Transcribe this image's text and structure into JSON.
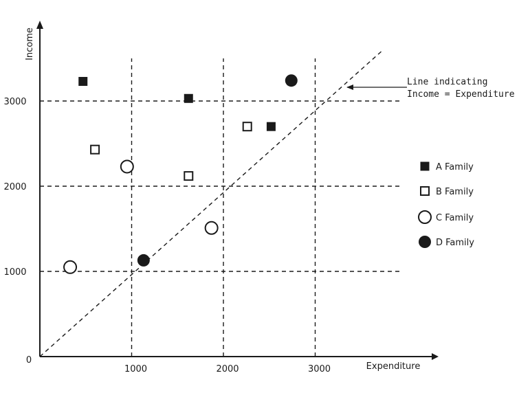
{
  "chart_data": {
    "type": "scatter",
    "title": "",
    "xlabel": "Expenditure",
    "ylabel": "Income",
    "origin_label": "0",
    "x_ticks": [
      "1000",
      "2000",
      "3000"
    ],
    "y_ticks": [
      "1000",
      "2000",
      "3000"
    ],
    "xlim": [
      0,
      3500
    ],
    "ylim": [
      0,
      3850
    ],
    "grid": true,
    "legend_position": "right",
    "reference_line": {
      "label_line1": "Line indicating",
      "label_line2": "Income = Expenditure"
    },
    "series": [
      {
        "name": "A Family",
        "marker": "filled-square",
        "points": [
          {
            "x": 470,
            "y": 3230
          },
          {
            "x": 1620,
            "y": 3030
          },
          {
            "x": 2520,
            "y": 2700
          }
        ]
      },
      {
        "name": "B Family",
        "marker": "open-square",
        "points": [
          {
            "x": 600,
            "y": 2430
          },
          {
            "x": 1620,
            "y": 2120
          },
          {
            "x": 2260,
            "y": 2700
          }
        ]
      },
      {
        "name": "C Family",
        "marker": "open-circle",
        "points": [
          {
            "x": 330,
            "y": 1050
          },
          {
            "x": 950,
            "y": 2230
          },
          {
            "x": 1870,
            "y": 1510
          }
        ]
      },
      {
        "name": "D Family",
        "marker": "filled-circle",
        "points": [
          {
            "x": 1130,
            "y": 1130
          },
          {
            "x": 2740,
            "y": 3240
          }
        ]
      }
    ]
  }
}
